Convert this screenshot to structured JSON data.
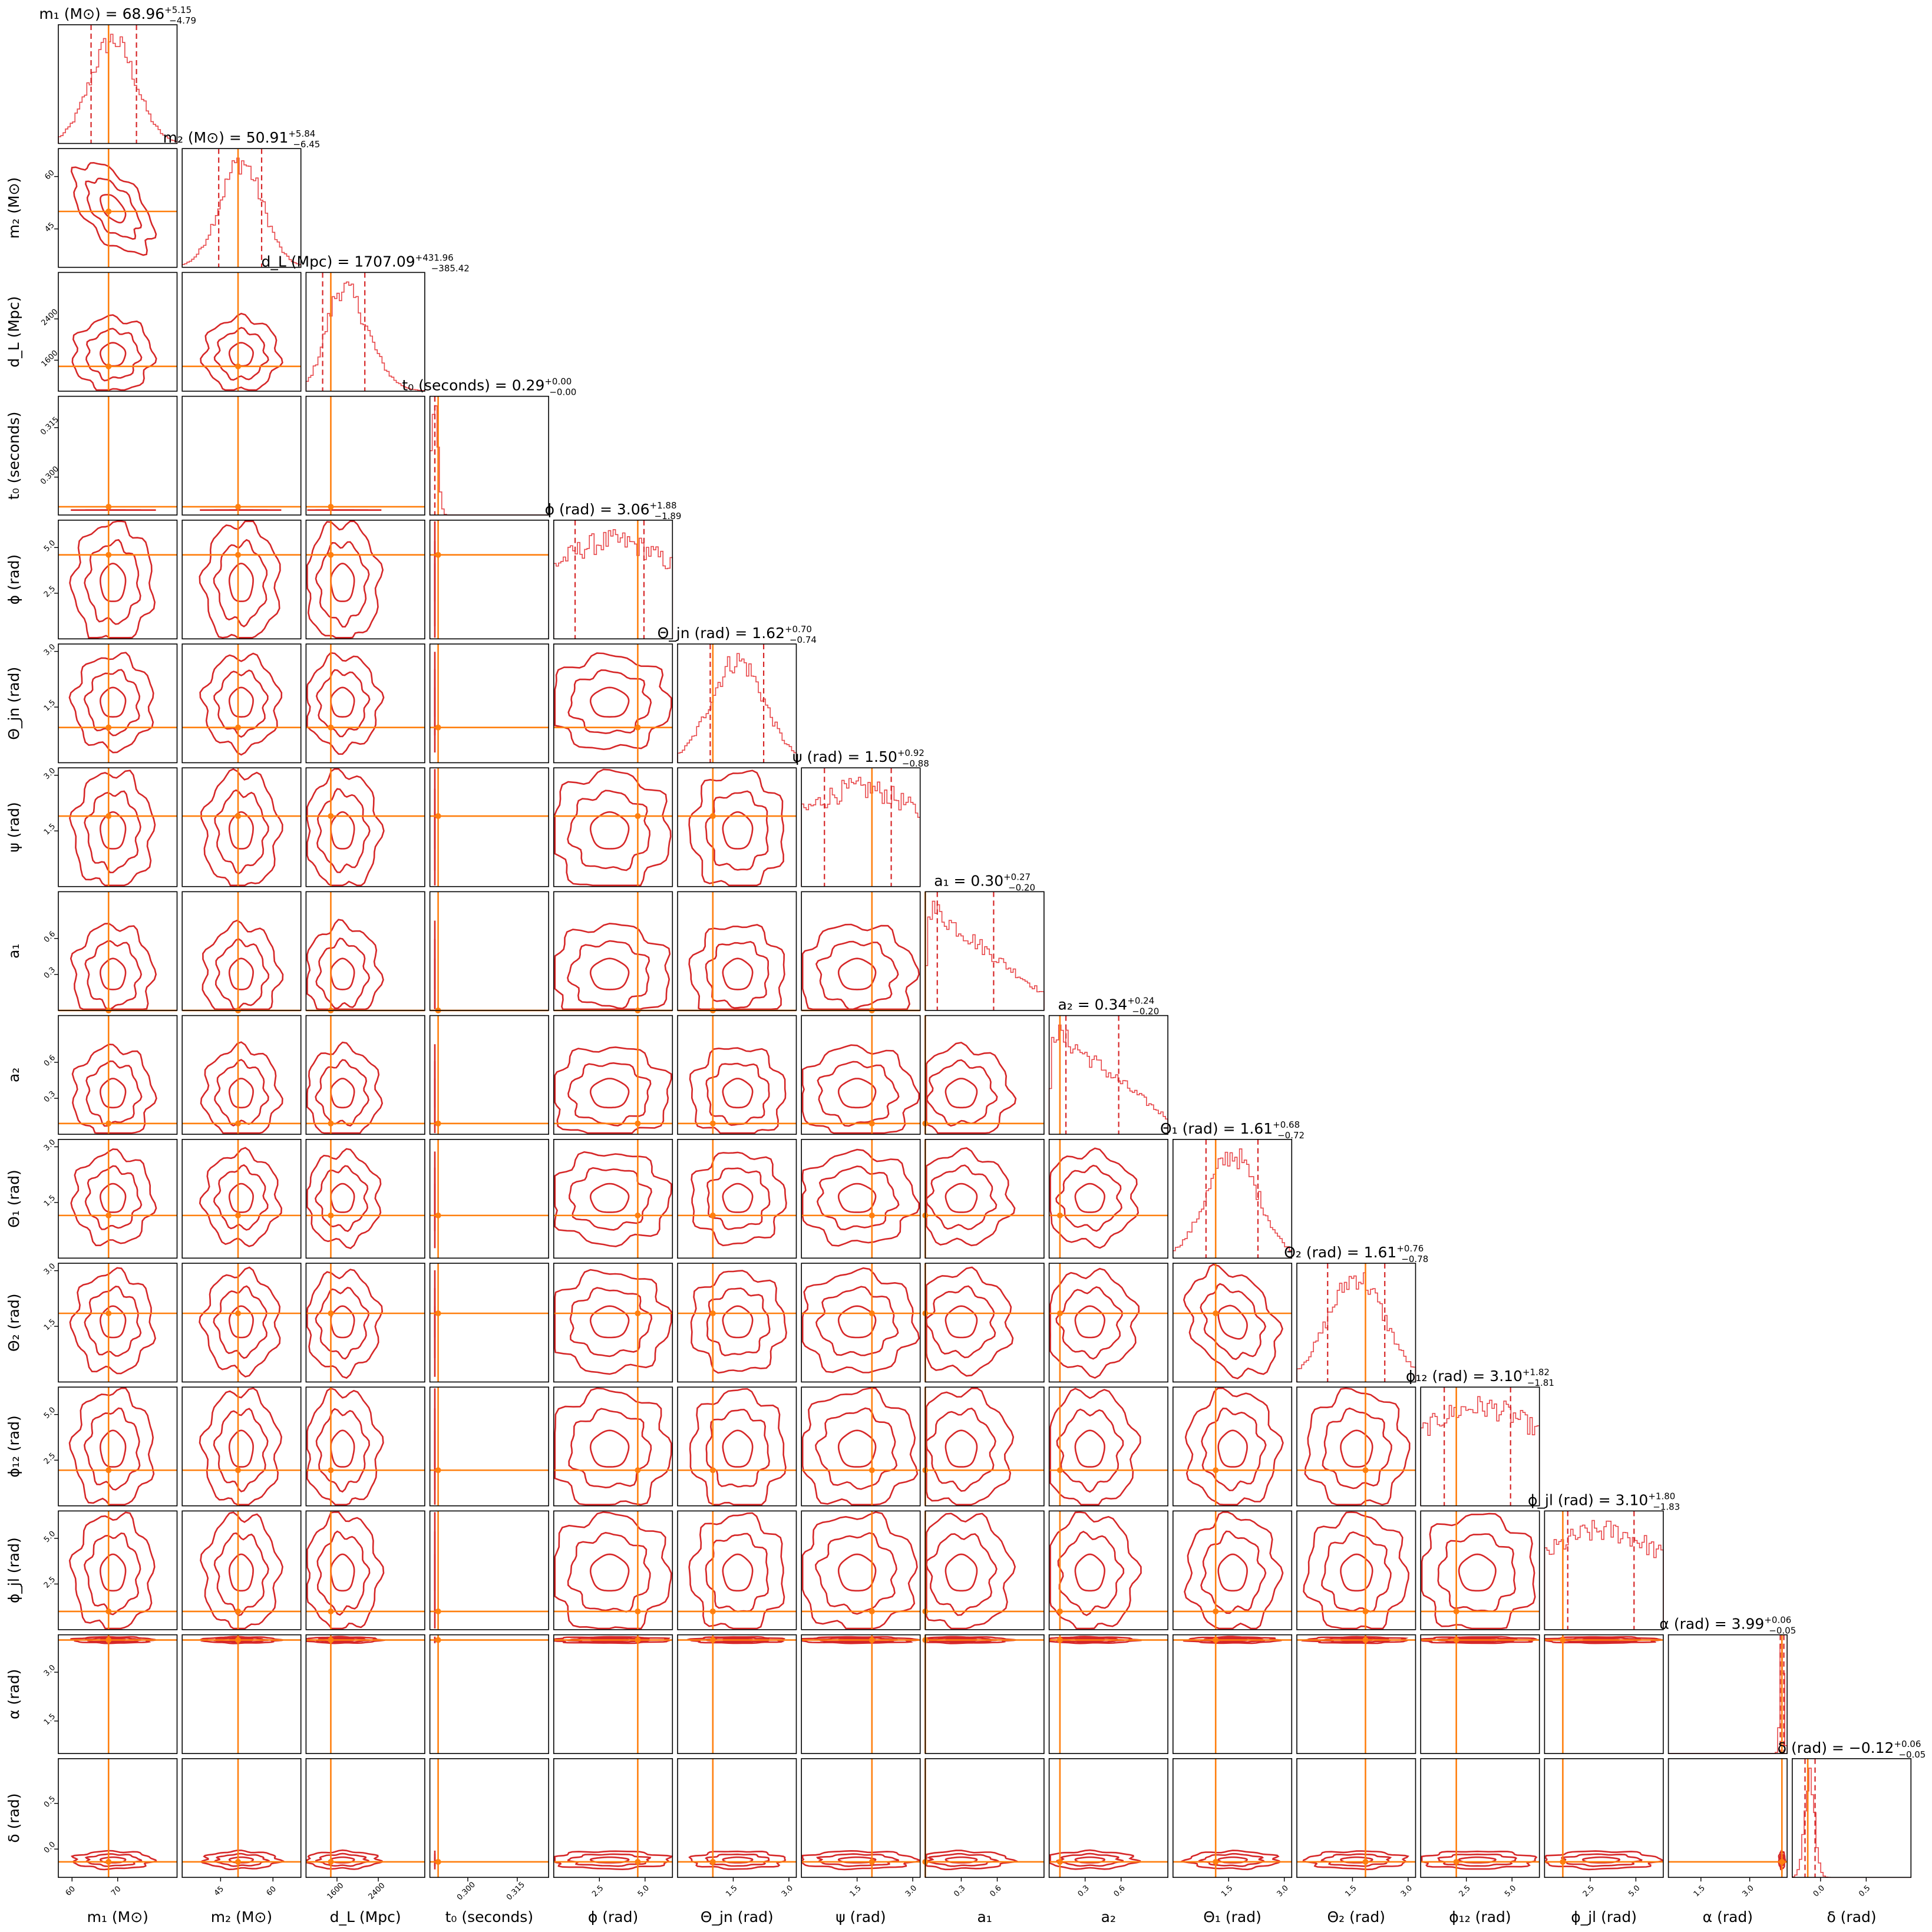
{
  "chart_data": {
    "type": "corner",
    "colors": {
      "contour": "#d62728",
      "histogram": "#e8474a",
      "quantiles": "#d62728",
      "truth": "#ff7f0e"
    },
    "parameters": [
      {
        "key": "m1",
        "label": "m₁ (M⊙)",
        "title": "m₁ (M⊙) = 68.96",
        "median": 68.96,
        "plus": 5.15,
        "minus": 4.79,
        "truth": 68.0,
        "range": [
          57,
          83
        ],
        "ticks": [
          {
            "v": 60,
            "t": "60"
          },
          {
            "v": 70,
            "t": "70"
          }
        ],
        "shape": "normal"
      },
      {
        "key": "m2",
        "label": "m₂ (M⊙)",
        "title": "m₂ (M⊙) = 50.91",
        "median": 50.91,
        "plus": 5.84,
        "minus": 6.45,
        "truth": 50.0,
        "range": [
          34,
          68
        ],
        "ticks": [
          {
            "v": 45,
            "t": "45"
          },
          {
            "v": 60,
            "t": "60"
          }
        ],
        "shape": "normal"
      },
      {
        "key": "dL",
        "label": "d_L (Mpc)",
        "title": "d_L (Mpc) = 1707.09",
        "median": 1707.09,
        "plus": 431.96,
        "minus": 385.42,
        "truth": 1480.0,
        "range": [
          1000,
          3300
        ],
        "ticks": [
          {
            "v": 1600,
            "t": "1600"
          },
          {
            "v": 2400,
            "t": "2400"
          }
        ],
        "shape": "skew"
      },
      {
        "key": "t0",
        "label": "t₀ (seconds)",
        "title": "t₀ (seconds) = 0.29",
        "median": 0.29,
        "plus": 0.0,
        "minus": 0.0,
        "truth": 0.291,
        "range": [
          0.2885,
          0.3245
        ],
        "ticks": [
          {
            "v": 0.3,
            "t": "0.300"
          },
          {
            "v": 0.315,
            "t": "0.315"
          }
        ],
        "shape": "narrow"
      },
      {
        "key": "phi",
        "label": "ϕ (rad)",
        "title": "ϕ (rad) = 3.06",
        "median": 3.06,
        "plus": 1.88,
        "minus": 1.89,
        "truth": 4.6,
        "range": [
          0,
          6.5
        ],
        "ticks": [
          {
            "v": 2.5,
            "t": "2.5"
          },
          {
            "v": 5.0,
            "t": "5.0"
          }
        ],
        "shape": "flat"
      },
      {
        "key": "theta_jn",
        "label": "Θ_jn (rad)",
        "title": "Θ_jn (rad) = 1.62",
        "median": 1.62,
        "plus": 0.7,
        "minus": 0.74,
        "truth": 0.95,
        "range": [
          0,
          3.2
        ],
        "ticks": [
          {
            "v": 1.5,
            "t": "1.5"
          },
          {
            "v": 3.0,
            "t": "3.0"
          }
        ],
        "shape": "normal"
      },
      {
        "key": "psi",
        "label": "ψ (rad)",
        "title": "ψ (rad) = 1.50",
        "median": 1.5,
        "plus": 0.92,
        "minus": 0.88,
        "truth": 1.9,
        "range": [
          0,
          3.2
        ],
        "ticks": [
          {
            "v": 1.5,
            "t": "1.5"
          },
          {
            "v": 3.0,
            "t": "3.0"
          }
        ],
        "shape": "flat"
      },
      {
        "key": "a1",
        "label": "a₁",
        "title": "a₁ = 0.30",
        "median": 0.3,
        "plus": 0.27,
        "minus": 0.2,
        "truth": 0.0,
        "range": [
          0,
          0.99
        ],
        "ticks": [
          {
            "v": 0.3,
            "t": "0.3"
          },
          {
            "v": 0.6,
            "t": "0.6"
          }
        ],
        "shape": "decay"
      },
      {
        "key": "a2",
        "label": "a₂",
        "title": "a₂ = 0.34",
        "median": 0.34,
        "plus": 0.24,
        "minus": 0.2,
        "truth": 0.09,
        "range": [
          0,
          0.99
        ],
        "ticks": [
          {
            "v": 0.3,
            "t": "0.3"
          },
          {
            "v": 0.6,
            "t": "0.6"
          }
        ],
        "shape": "decay"
      },
      {
        "key": "theta1",
        "label": "Θ₁ (rad)",
        "title": "Θ₁ (rad) = 1.61",
        "median": 1.61,
        "plus": 0.68,
        "minus": 0.72,
        "truth": 1.15,
        "range": [
          0,
          3.2
        ],
        "ticks": [
          {
            "v": 1.5,
            "t": "1.5"
          },
          {
            "v": 3.0,
            "t": "3.0"
          }
        ],
        "shape": "normal"
      },
      {
        "key": "theta2",
        "label": "Θ₂ (rad)",
        "title": "Θ₂ (rad) = 1.61",
        "median": 1.61,
        "plus": 0.76,
        "minus": 0.78,
        "truth": 1.85,
        "range": [
          0,
          3.2
        ],
        "ticks": [
          {
            "v": 1.5,
            "t": "1.5"
          },
          {
            "v": 3.0,
            "t": "3.0"
          }
        ],
        "shape": "normal"
      },
      {
        "key": "phi12",
        "label": "ϕ₁₂ (rad)",
        "title": "ϕ₁₂ (rad) = 3.10",
        "median": 3.1,
        "plus": 1.82,
        "minus": 1.81,
        "truth": 1.95,
        "range": [
          0,
          6.5
        ],
        "ticks": [
          {
            "v": 2.5,
            "t": "2.5"
          },
          {
            "v": 5.0,
            "t": "5.0"
          }
        ],
        "shape": "flat"
      },
      {
        "key": "phi_jl",
        "label": "ϕ_jl (rad)",
        "title": "ϕ_jl (rad) = 3.10",
        "median": 3.1,
        "plus": 1.8,
        "minus": 1.83,
        "truth": 1.0,
        "range": [
          0,
          6.5
        ],
        "ticks": [
          {
            "v": 2.5,
            "t": "2.5"
          },
          {
            "v": 5.0,
            "t": "5.0"
          }
        ],
        "shape": "flat"
      },
      {
        "key": "alpha",
        "label": "α (rad)",
        "title": "α (rad) = 3.99",
        "median": 3.99,
        "plus": 0.06,
        "minus": 0.05,
        "truth": 3.99,
        "range": [
          0.5,
          4.15
        ],
        "ticks": [
          {
            "v": 1.5,
            "t": "1.5"
          },
          {
            "v": 3.0,
            "t": "3.0"
          }
        ],
        "shape": "narrow"
      },
      {
        "key": "delta",
        "label": "δ (rad)",
        "title": "δ (rad) = −0.12",
        "median": -0.12,
        "plus": 0.06,
        "minus": 0.05,
        "truth": -0.14,
        "range": [
          -0.31,
          0.99
        ],
        "ticks": [
          {
            "v": 0.0,
            "t": "0.0"
          },
          {
            "v": 0.5,
            "t": "0.5"
          }
        ],
        "shape": "narrow"
      }
    ]
  }
}
